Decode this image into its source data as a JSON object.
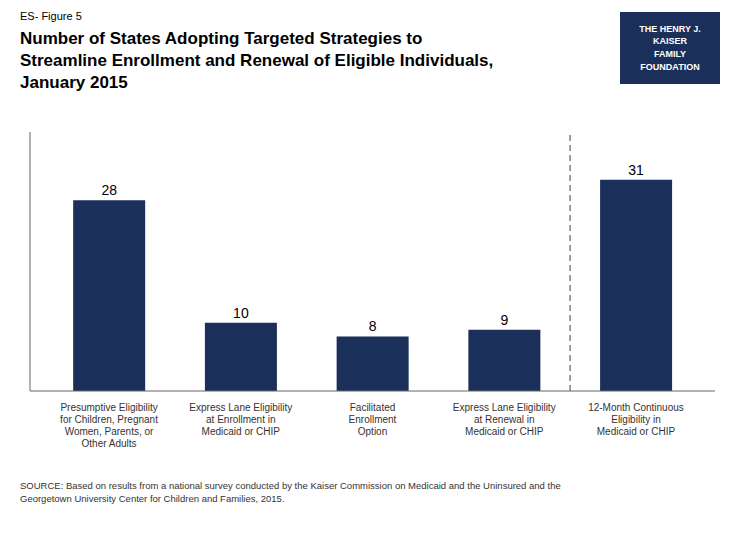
{
  "chart_data": {
    "type": "bar",
    "subtitle": "ES- Figure 5",
    "title": "Number of States Adopting Targeted Strategies to\nStreamline Enrollment and Renewal of Eligible Individuals,\nJanuary 2015",
    "categories": [
      "Presumptive Eligibility\nfor Children, Pregnant\nWomen, Parents, or\nOther Adults",
      "Express Lane Eligibility\nat Enrollment in\nMedicaid or CHIP",
      "Facilitated\nEnrollment\nOption",
      "Express Lane Eligibility\nat Renewal in\nMedicaid or CHIP",
      "12-Month Continuous\nEligibility in\nMedicaid or CHIP"
    ],
    "values": [
      28,
      10,
      8,
      9,
      31
    ],
    "color": "#1a2f5a",
    "ylim": [
      0,
      38
    ],
    "yticks": [],
    "data_labels": true,
    "tick_labels": "x",
    "grid": false,
    "dashed_line_x": 3.5,
    "annotations": [
      "SOURCE: Based on results from a national survey conducted by the Kaiser Commission on Medicaid and the Uninsured and the\nGeorgetown University Center for Children and Families, 2015.",
      "THE HENRY J.\nKAISER\nFAMILY\nFOUNDATION"
    ]
  }
}
